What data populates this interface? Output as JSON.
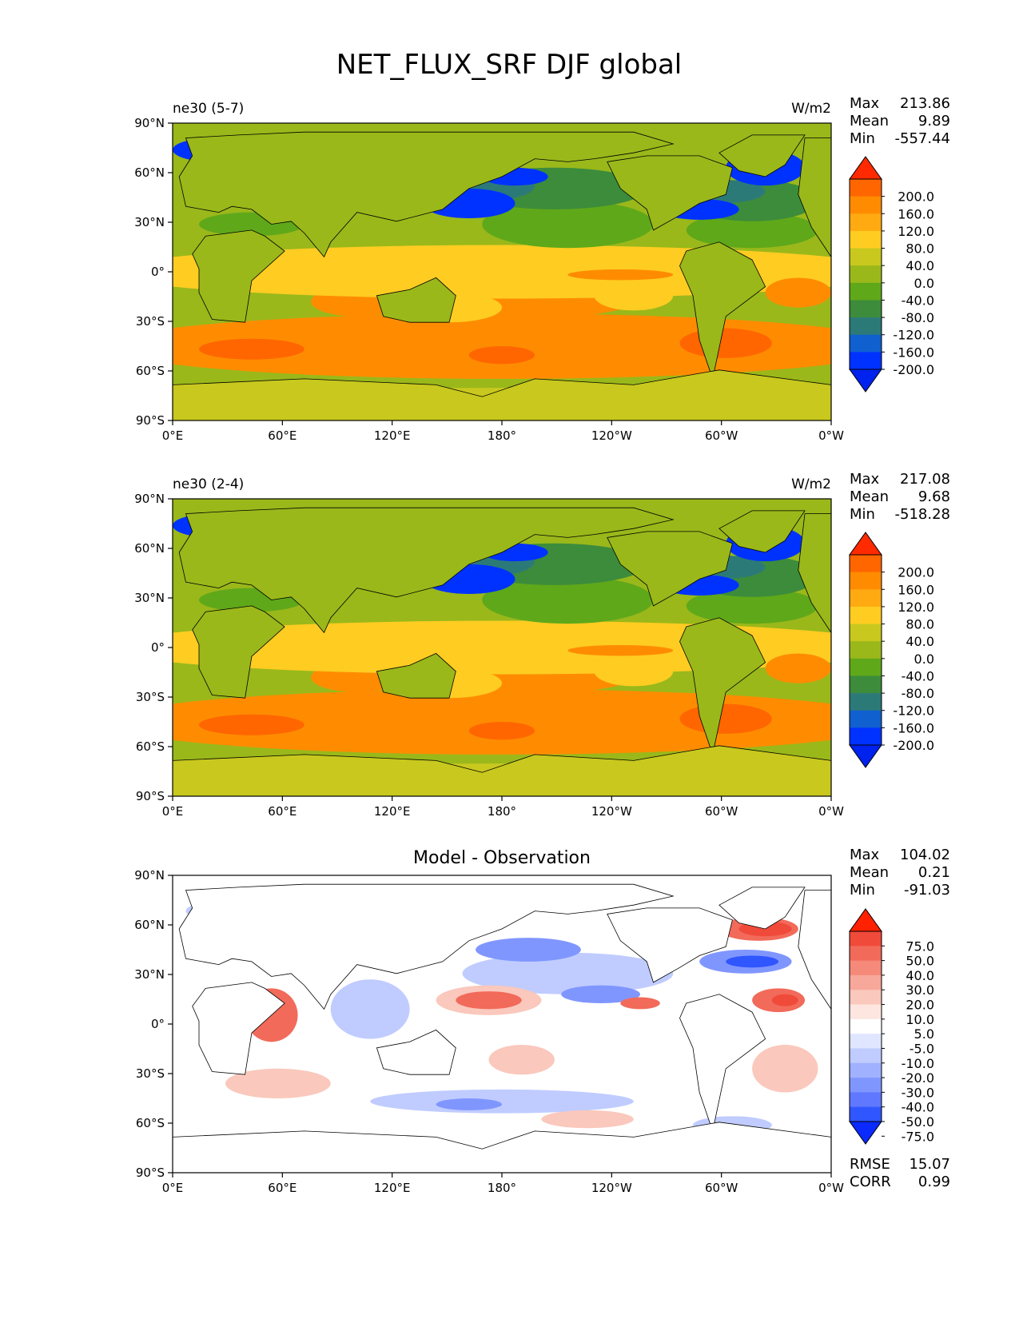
{
  "title": "NET_FLUX_SRF DJF global",
  "lat_labels": [
    "90°N",
    "60°N",
    "30°N",
    "0°",
    "30°S",
    "60°S",
    "90°S"
  ],
  "lon_labels": [
    "0°E",
    "60°E",
    "120°E",
    "180°",
    "120°W",
    "60°W",
    "0°W"
  ],
  "panels": [
    {
      "id": "test",
      "left_title": "ne30 (5-7)",
      "center_title": "",
      "units": "W/m2",
      "stats": {
        "max_label": "Max",
        "max": "213.86",
        "mean_label": "Mean",
        "mean": "9.89",
        "min_label": "Min",
        "min": "-557.44"
      },
      "colorbar_labels": [
        "200.0",
        "160.0",
        "120.0",
        "80.0",
        "40.0",
        "0.0",
        "-40.0",
        "-80.0",
        "-120.0",
        "-160.0",
        "-200.0"
      ],
      "colorbar_colors": [
        "#ff2a00",
        "#ff6600",
        "#ff8c00",
        "#ffaa11",
        "#ffcc22",
        "#c8c81e",
        "#9ab81a",
        "#5fa81a",
        "#3c8c3c",
        "#2c7a78",
        "#1060d0",
        "#0032ff",
        "#0022ee"
      ]
    },
    {
      "id": "reference",
      "left_title": "ne30 (2-4)",
      "center_title": "",
      "units": "W/m2",
      "stats": {
        "max_label": "Max",
        "max": "217.08",
        "mean_label": "Mean",
        "mean": "9.68",
        "min_label": "Min",
        "min": "-518.28"
      },
      "colorbar_labels": [
        "200.0",
        "160.0",
        "120.0",
        "80.0",
        "40.0",
        "0.0",
        "-40.0",
        "-80.0",
        "-120.0",
        "-160.0",
        "-200.0"
      ],
      "colorbar_colors": [
        "#ff2a00",
        "#ff6600",
        "#ff8c00",
        "#ffaa11",
        "#ffcc22",
        "#c8c81e",
        "#9ab81a",
        "#5fa81a",
        "#3c8c3c",
        "#2c7a78",
        "#1060d0",
        "#0032ff",
        "#0022ee"
      ]
    },
    {
      "id": "difference",
      "left_title": "",
      "center_title": "Model - Observation",
      "units": "",
      "stats": {
        "max_label": "Max",
        "max": "104.02",
        "mean_label": "Mean",
        "mean": "0.21",
        "min_label": "Min",
        "min": "-91.03"
      },
      "colorbar_labels": [
        "75.0",
        "50.0",
        "40.0",
        "30.0",
        "20.0",
        "10.0",
        "5.0",
        "-5.0",
        "-10.0",
        "-20.0",
        "-30.0",
        "-40.0",
        "-50.0",
        "-75.0"
      ],
      "colorbar_colors": [
        "#ff2200",
        "#f04a3a",
        "#f26a5a",
        "#f5897a",
        "#f7a89a",
        "#fac8bc",
        "#fde6e0",
        "#ffffff",
        "#e0e6ff",
        "#c0ccff",
        "#a0b2ff",
        "#8096ff",
        "#6078ff",
        "#3056ff",
        "#0a2aff"
      ],
      "footer": {
        "rmse_label": "RMSE",
        "rmse": "15.07",
        "corr_label": "CORR",
        "corr": "0.99"
      }
    }
  ],
  "colors": {
    "land_model": "#9ab81a",
    "ocean_tropical": "#ffcc22",
    "ocean_southern": "#ff8c00",
    "western_boundary": "#0032ff",
    "diff_positive": "#f26a5a",
    "diff_negative": "#8096ff"
  }
}
